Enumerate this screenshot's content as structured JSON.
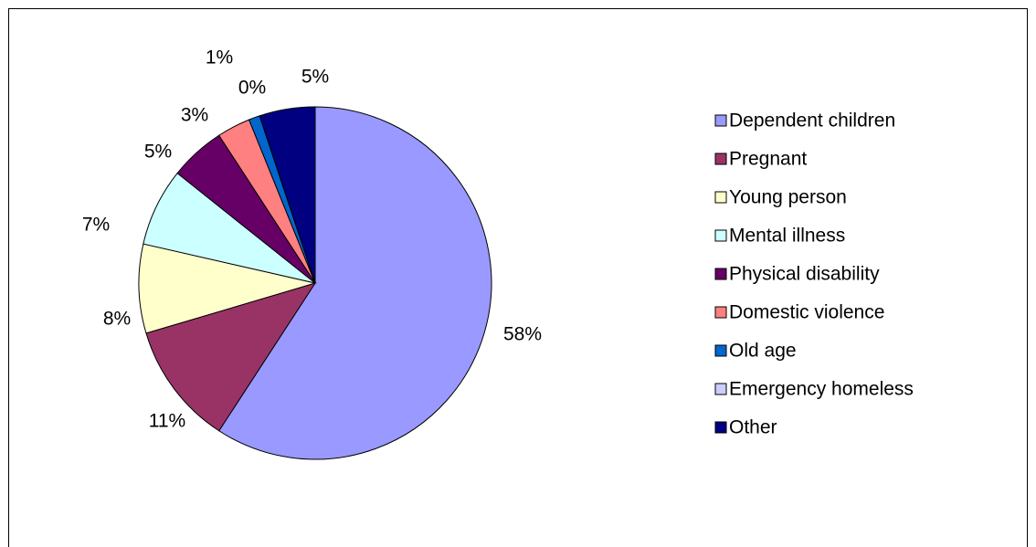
{
  "chart_data": {
    "type": "pie",
    "categories": [
      "Dependent children",
      "Pregnant",
      "Young person",
      "Mental illness",
      "Physical disability",
      "Domestic violence",
      "Old age",
      "Emergency homeless",
      "Other"
    ],
    "values": [
      58,
      11,
      8,
      7,
      5,
      3,
      1,
      0,
      5
    ],
    "value_labels": [
      "58%",
      "11%",
      "8%",
      "7%",
      "5%",
      "3%",
      "1%",
      "0%",
      "5%"
    ],
    "colors": [
      "#9999ff",
      "#993366",
      "#ffffcc",
      "#ccffff",
      "#660066",
      "#ff8080",
      "#0066cc",
      "#ccccff",
      "#000080"
    ],
    "legend": "right"
  }
}
